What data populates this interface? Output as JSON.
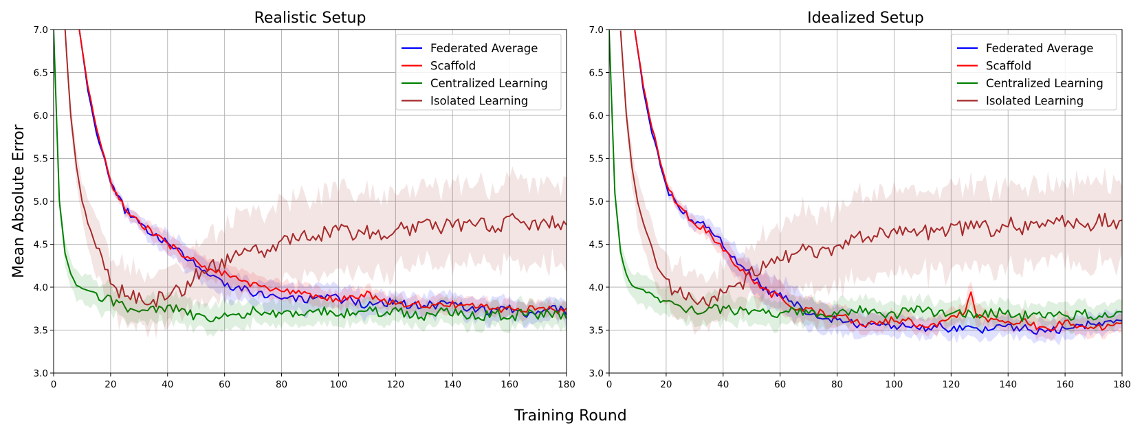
{
  "figure": {
    "ylabel": "Mean Absolute Error",
    "xlabel": "Training Round"
  },
  "chart_data": [
    {
      "type": "line",
      "title": "Realistic Setup",
      "xlim": [
        0,
        180
      ],
      "ylim": [
        3.0,
        7.0
      ],
      "xticks": [
        0,
        20,
        40,
        60,
        80,
        100,
        120,
        140,
        160,
        180
      ],
      "yticks": [
        3.0,
        3.5,
        4.0,
        4.5,
        5.0,
        5.5,
        6.0,
        6.5,
        7.0
      ],
      "grid": true,
      "legend_position": "top-right",
      "series": [
        {
          "name": "Federated Average",
          "color": "#0000ff",
          "x": [
            9,
            12,
            15,
            20,
            25,
            30,
            35,
            40,
            45,
            50,
            55,
            60,
            65,
            70,
            75,
            80,
            85,
            90,
            95,
            100,
            105,
            110,
            115,
            120,
            125,
            130,
            135,
            140,
            145,
            150,
            155,
            160,
            165,
            170,
            175,
            180
          ],
          "y": [
            7.0,
            6.3,
            5.8,
            5.2,
            4.9,
            4.75,
            4.63,
            4.5,
            4.38,
            4.25,
            4.12,
            4.05,
            3.98,
            3.95,
            3.92,
            3.88,
            3.85,
            3.85,
            3.86,
            3.87,
            3.84,
            3.8,
            3.83,
            3.82,
            3.78,
            3.78,
            3.8,
            3.85,
            3.72,
            3.74,
            3.72,
            3.76,
            3.7,
            3.72,
            3.75,
            3.72
          ],
          "band": [
            0.02,
            0.03,
            0.04,
            0.05,
            0.06,
            0.08,
            0.1,
            0.12,
            0.14,
            0.15,
            0.16,
            0.16,
            0.16,
            0.15,
            0.15,
            0.15,
            0.15,
            0.14,
            0.14,
            0.14,
            0.13,
            0.13,
            0.13,
            0.12,
            0.12,
            0.12,
            0.12,
            0.12,
            0.12,
            0.12,
            0.12,
            0.12,
            0.12,
            0.12,
            0.12,
            0.12
          ]
        },
        {
          "name": "Scaffold",
          "color": "#ff0000",
          "x": [
            9,
            12,
            15,
            20,
            25,
            30,
            35,
            40,
            45,
            50,
            55,
            60,
            65,
            70,
            75,
            80,
            85,
            90,
            95,
            100,
            105,
            110,
            115,
            120,
            125,
            130,
            135,
            140,
            145,
            150,
            155,
            160,
            165,
            170,
            175,
            180
          ],
          "y": [
            7.0,
            6.35,
            5.85,
            5.22,
            4.9,
            4.75,
            4.63,
            4.5,
            4.4,
            4.3,
            4.2,
            4.15,
            4.08,
            4.03,
            3.98,
            3.95,
            3.93,
            3.9,
            3.88,
            3.85,
            3.87,
            3.92,
            3.85,
            3.82,
            3.8,
            3.8,
            3.78,
            3.8,
            3.78,
            3.78,
            3.75,
            3.74,
            3.75,
            3.75,
            3.74,
            3.72
          ],
          "band": [
            0.02,
            0.03,
            0.04,
            0.05,
            0.06,
            0.07,
            0.08,
            0.1,
            0.11,
            0.12,
            0.12,
            0.12,
            0.12,
            0.11,
            0.11,
            0.1,
            0.1,
            0.1,
            0.1,
            0.1,
            0.1,
            0.1,
            0.1,
            0.09,
            0.09,
            0.09,
            0.09,
            0.09,
            0.09,
            0.09,
            0.09,
            0.09,
            0.09,
            0.09,
            0.09,
            0.09
          ]
        },
        {
          "name": "Centralized Learning",
          "color": "#008000",
          "x": [
            0,
            2,
            4,
            6,
            8,
            10,
            12,
            15,
            20,
            25,
            30,
            35,
            40,
            45,
            50,
            55,
            60,
            65,
            70,
            75,
            80,
            85,
            90,
            95,
            100,
            105,
            110,
            115,
            120,
            125,
            130,
            135,
            140,
            145,
            150,
            155,
            160,
            165,
            170,
            175,
            180
          ],
          "y": [
            7.0,
            5.0,
            4.4,
            4.15,
            4.02,
            3.98,
            3.96,
            3.92,
            3.85,
            3.78,
            3.72,
            3.74,
            3.76,
            3.72,
            3.66,
            3.62,
            3.65,
            3.68,
            3.72,
            3.66,
            3.7,
            3.68,
            3.75,
            3.72,
            3.68,
            3.72,
            3.75,
            3.7,
            3.72,
            3.68,
            3.66,
            3.7,
            3.72,
            3.68,
            3.66,
            3.7,
            3.64,
            3.7,
            3.66,
            3.7,
            3.66
          ],
          "band": [
            0.05,
            0.1,
            0.12,
            0.14,
            0.15,
            0.15,
            0.16,
            0.16,
            0.16,
            0.15,
            0.15,
            0.15,
            0.15,
            0.15,
            0.15,
            0.15,
            0.15,
            0.15,
            0.14,
            0.14,
            0.14,
            0.14,
            0.14,
            0.13,
            0.13,
            0.13,
            0.13,
            0.13,
            0.13,
            0.13,
            0.13,
            0.13,
            0.13,
            0.13,
            0.13,
            0.13,
            0.13,
            0.13,
            0.13,
            0.13,
            0.13
          ]
        },
        {
          "name": "Isolated Learning",
          "color": "#a52a2a",
          "x": [
            4,
            6,
            8,
            10,
            12,
            15,
            18,
            20,
            22,
            25,
            28,
            30,
            32,
            35,
            38,
            40,
            43,
            45,
            48,
            50,
            55,
            60,
            65,
            70,
            75,
            80,
            85,
            90,
            95,
            100,
            105,
            110,
            115,
            120,
            125,
            130,
            135,
            140,
            145,
            150,
            155,
            160,
            165,
            170,
            175,
            180
          ],
          "y": [
            7.0,
            6.0,
            5.4,
            5.0,
            4.75,
            4.45,
            4.2,
            4.05,
            3.98,
            3.93,
            3.92,
            3.86,
            3.88,
            3.85,
            3.88,
            3.9,
            3.95,
            3.98,
            4.05,
            4.15,
            4.25,
            4.3,
            4.4,
            4.45,
            4.38,
            4.5,
            4.55,
            4.6,
            4.62,
            4.65,
            4.62,
            4.66,
            4.6,
            4.7,
            4.68,
            4.72,
            4.66,
            4.75,
            4.7,
            4.72,
            4.7,
            4.78,
            4.72,
            4.75,
            4.78,
            4.74
          ],
          "band": [
            0.1,
            0.15,
            0.2,
            0.25,
            0.28,
            0.3,
            0.3,
            0.3,
            0.3,
            0.3,
            0.3,
            0.3,
            0.3,
            0.3,
            0.3,
            0.3,
            0.3,
            0.3,
            0.3,
            0.3,
            0.35,
            0.38,
            0.42,
            0.45,
            0.45,
            0.45,
            0.45,
            0.45,
            0.45,
            0.45,
            0.45,
            0.45,
            0.45,
            0.45,
            0.45,
            0.45,
            0.45,
            0.45,
            0.45,
            0.45,
            0.45,
            0.45,
            0.45,
            0.45,
            0.45,
            0.45
          ]
        }
      ]
    },
    {
      "type": "line",
      "title": "Idealized Setup",
      "xlim": [
        0,
        180
      ],
      "ylim": [
        3.0,
        7.0
      ],
      "xticks": [
        0,
        20,
        40,
        60,
        80,
        100,
        120,
        140,
        160,
        180
      ],
      "yticks": [
        3.0,
        3.5,
        4.0,
        4.5,
        5.0,
        5.5,
        6.0,
        6.5,
        7.0
      ],
      "grid": true,
      "legend_position": "top-right",
      "series": [
        {
          "name": "Federated Average",
          "color": "#0000ff",
          "x": [
            9,
            12,
            15,
            20,
            25,
            30,
            35,
            40,
            45,
            50,
            55,
            60,
            65,
            70,
            75,
            80,
            85,
            90,
            95,
            100,
            105,
            110,
            115,
            120,
            125,
            130,
            135,
            140,
            145,
            150,
            155,
            160,
            165,
            170,
            175,
            180
          ],
          "y": [
            7.0,
            6.3,
            5.8,
            5.15,
            4.9,
            4.78,
            4.68,
            4.5,
            4.3,
            4.12,
            3.98,
            3.9,
            3.8,
            3.72,
            3.66,
            3.62,
            3.58,
            3.56,
            3.54,
            3.55,
            3.53,
            3.52,
            3.55,
            3.5,
            3.52,
            3.5,
            3.55,
            3.55,
            3.52,
            3.5,
            3.48,
            3.52,
            3.55,
            3.58,
            3.56,
            3.62
          ],
          "band": [
            0.02,
            0.03,
            0.04,
            0.05,
            0.06,
            0.08,
            0.1,
            0.12,
            0.15,
            0.17,
            0.18,
            0.18,
            0.18,
            0.17,
            0.16,
            0.15,
            0.14,
            0.13,
            0.12,
            0.12,
            0.11,
            0.11,
            0.11,
            0.11,
            0.11,
            0.11,
            0.11,
            0.11,
            0.11,
            0.11,
            0.11,
            0.11,
            0.11,
            0.11,
            0.11,
            0.11
          ]
        },
        {
          "name": "Scaffold",
          "color": "#ff0000",
          "x": [
            9,
            12,
            15,
            20,
            25,
            30,
            35,
            40,
            45,
            50,
            55,
            60,
            65,
            70,
            75,
            80,
            85,
            90,
            95,
            100,
            105,
            110,
            115,
            120,
            122,
            125,
            127,
            129,
            132,
            135,
            140,
            145,
            150,
            155,
            160,
            165,
            170,
            175,
            180
          ],
          "y": [
            7.0,
            6.35,
            5.85,
            5.18,
            4.9,
            4.75,
            4.65,
            4.45,
            4.25,
            4.1,
            3.95,
            3.88,
            3.78,
            3.72,
            3.7,
            3.66,
            3.62,
            3.58,
            3.6,
            3.62,
            3.6,
            3.55,
            3.58,
            3.62,
            3.65,
            3.7,
            3.95,
            3.65,
            3.62,
            3.62,
            3.6,
            3.6,
            3.55,
            3.52,
            3.6,
            3.55,
            3.52,
            3.55,
            3.6
          ],
          "band": [
            0.02,
            0.03,
            0.04,
            0.05,
            0.06,
            0.07,
            0.08,
            0.1,
            0.12,
            0.14,
            0.15,
            0.15,
            0.15,
            0.14,
            0.13,
            0.12,
            0.11,
            0.1,
            0.1,
            0.1,
            0.1,
            0.1,
            0.1,
            0.1,
            0.1,
            0.12,
            0.15,
            0.12,
            0.1,
            0.1,
            0.1,
            0.1,
            0.1,
            0.1,
            0.1,
            0.1,
            0.1,
            0.1,
            0.1
          ]
        },
        {
          "name": "Centralized Learning",
          "color": "#008000",
          "x": [
            0,
            2,
            4,
            6,
            8,
            10,
            12,
            15,
            20,
            25,
            30,
            35,
            40,
            45,
            50,
            55,
            60,
            65,
            70,
            75,
            80,
            85,
            90,
            95,
            100,
            105,
            110,
            115,
            120,
            125,
            130,
            135,
            140,
            145,
            150,
            155,
            160,
            165,
            170,
            175,
            180
          ],
          "y": [
            7.0,
            5.1,
            4.4,
            4.15,
            4.02,
            3.98,
            3.96,
            3.92,
            3.85,
            3.75,
            3.72,
            3.76,
            3.74,
            3.72,
            3.74,
            3.7,
            3.68,
            3.72,
            3.7,
            3.68,
            3.66,
            3.72,
            3.74,
            3.7,
            3.68,
            3.72,
            3.75,
            3.7,
            3.72,
            3.68,
            3.68,
            3.7,
            3.72,
            3.66,
            3.68,
            3.7,
            3.64,
            3.7,
            3.66,
            3.7,
            3.72
          ],
          "band": [
            0.05,
            0.1,
            0.12,
            0.14,
            0.15,
            0.15,
            0.16,
            0.16,
            0.16,
            0.15,
            0.15,
            0.15,
            0.15,
            0.15,
            0.15,
            0.15,
            0.15,
            0.15,
            0.14,
            0.14,
            0.14,
            0.14,
            0.14,
            0.13,
            0.13,
            0.13,
            0.13,
            0.13,
            0.13,
            0.13,
            0.13,
            0.13,
            0.13,
            0.13,
            0.13,
            0.13,
            0.13,
            0.13,
            0.13,
            0.13,
            0.13
          ]
        },
        {
          "name": "Isolated Learning",
          "color": "#a52a2a",
          "x": [
            4,
            6,
            8,
            10,
            12,
            15,
            18,
            20,
            22,
            25,
            28,
            30,
            32,
            35,
            38,
            40,
            43,
            45,
            48,
            50,
            55,
            60,
            65,
            70,
            75,
            80,
            85,
            90,
            95,
            100,
            105,
            110,
            115,
            120,
            125,
            130,
            135,
            140,
            145,
            150,
            155,
            160,
            165,
            170,
            175,
            180
          ],
          "y": [
            7.0,
            6.0,
            5.4,
            5.0,
            4.75,
            4.45,
            4.2,
            4.05,
            3.98,
            3.93,
            3.92,
            3.86,
            3.88,
            3.85,
            3.88,
            3.9,
            3.95,
            3.98,
            4.05,
            4.15,
            4.25,
            4.3,
            4.4,
            4.45,
            4.38,
            4.5,
            4.55,
            4.6,
            4.62,
            4.65,
            4.62,
            4.66,
            4.6,
            4.7,
            4.68,
            4.72,
            4.66,
            4.75,
            4.7,
            4.72,
            4.7,
            4.78,
            4.72,
            4.75,
            4.78,
            4.74
          ],
          "band": [
            0.1,
            0.15,
            0.2,
            0.25,
            0.28,
            0.3,
            0.3,
            0.3,
            0.3,
            0.3,
            0.3,
            0.3,
            0.3,
            0.3,
            0.3,
            0.3,
            0.3,
            0.3,
            0.3,
            0.3,
            0.35,
            0.38,
            0.42,
            0.45,
            0.45,
            0.45,
            0.45,
            0.45,
            0.45,
            0.45,
            0.45,
            0.45,
            0.45,
            0.45,
            0.45,
            0.45,
            0.45,
            0.45,
            0.45,
            0.45,
            0.45,
            0.45,
            0.45,
            0.45,
            0.45,
            0.45
          ]
        }
      ]
    }
  ]
}
